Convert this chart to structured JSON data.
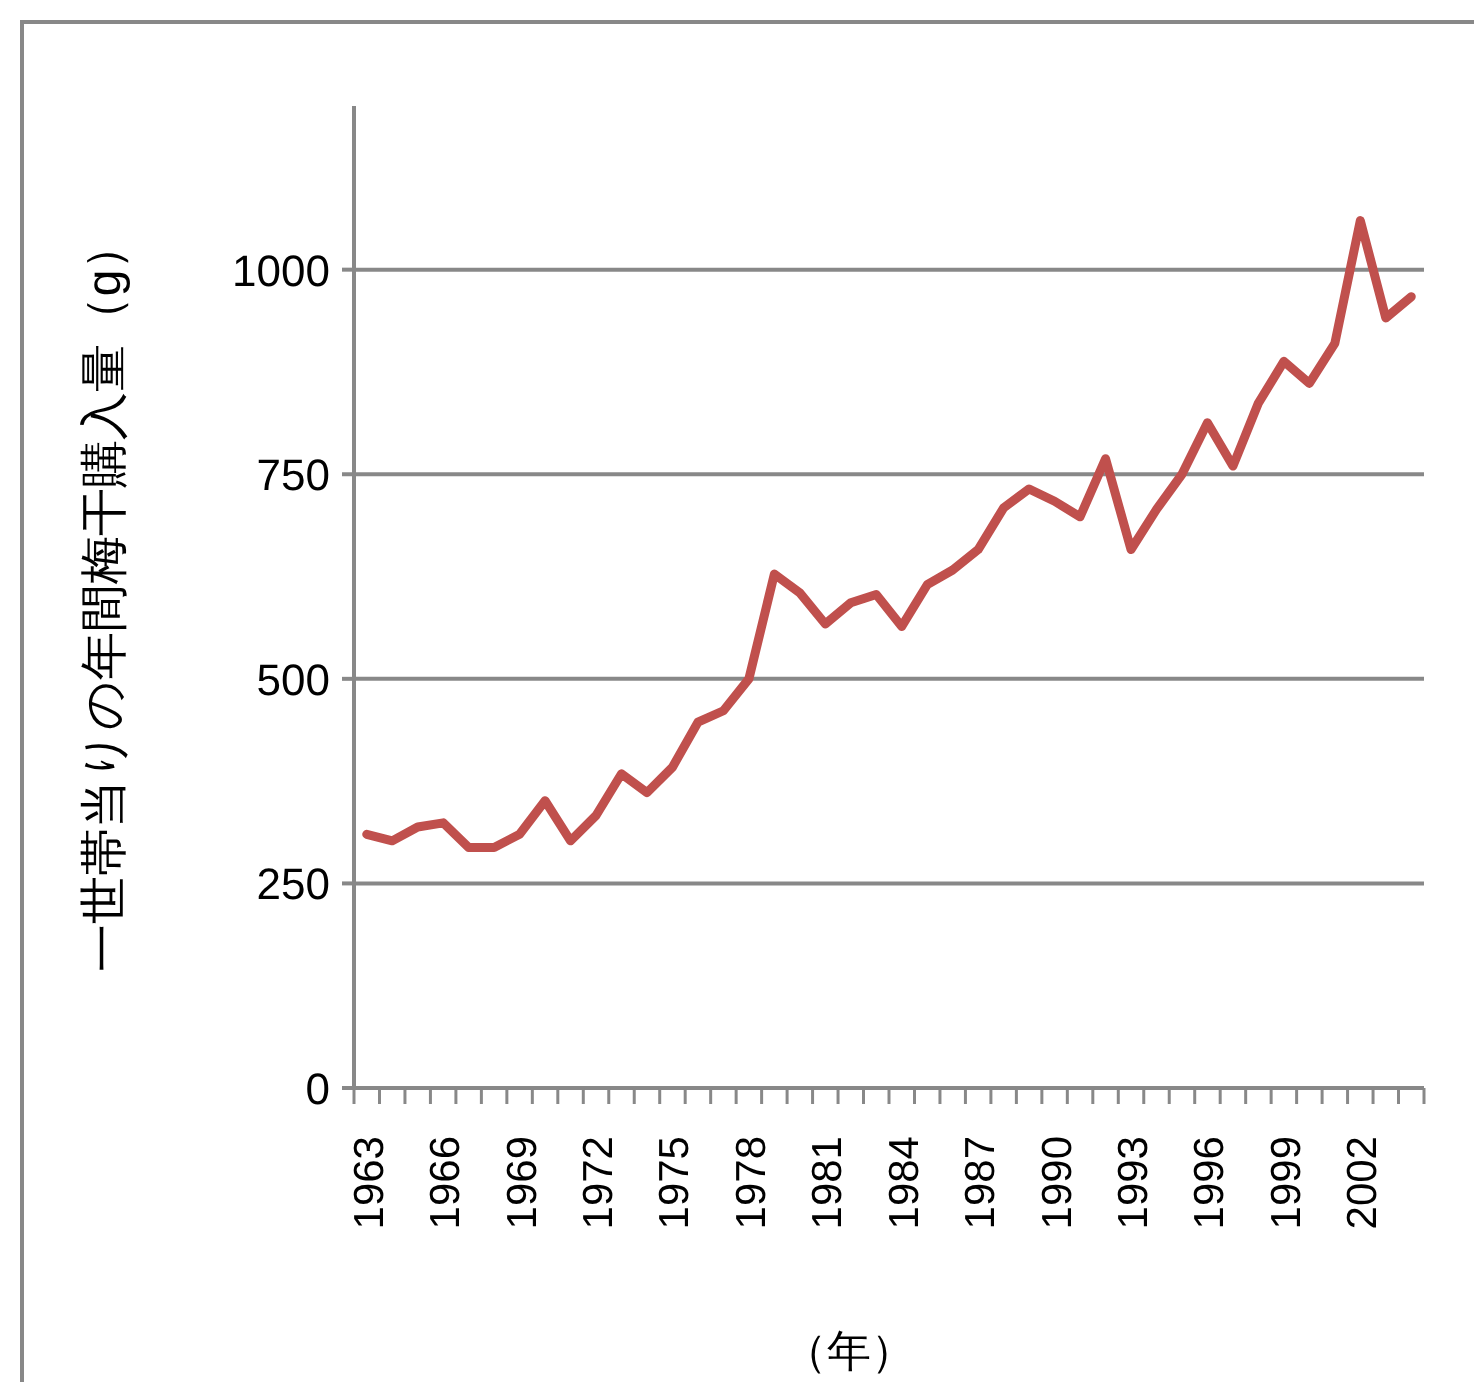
{
  "chart_data": {
    "type": "line",
    "ylabel": "一世帯当りの年間梅干購入量（g）",
    "xlabel": "（年）",
    "categories": [
      "1963",
      null,
      null,
      "1966",
      null,
      null,
      "1969",
      null,
      null,
      "1972",
      null,
      null,
      "1975",
      null,
      null,
      "1978",
      null,
      null,
      "1981",
      null,
      null,
      "1984",
      null,
      null,
      "1987",
      null,
      null,
      "1990",
      null,
      null,
      "1993",
      null,
      null,
      "1996",
      null,
      null,
      "1999",
      null,
      null,
      "2002",
      null,
      null
    ],
    "series": [
      {
        "color": "#c0504d",
        "values": [
          310,
          302,
          319,
          324,
          294,
          294,
          310,
          351,
          302,
          333,
          384,
          361,
          392,
          447,
          461,
          500,
          628,
          605,
          567,
          593,
          603,
          564,
          615,
          633,
          658,
          709,
          732,
          717,
          698,
          769,
          658,
          707,
          750,
          813,
          760,
          837,
          888,
          861,
          910,
          1060,
          941,
          967
        ]
      }
    ],
    "ylim": [
      0,
      1200
    ],
    "yticks": [
      0,
      250,
      500,
      750,
      1000
    ],
    "grid": "y",
    "marker": "none",
    "line_style": "solid"
  }
}
